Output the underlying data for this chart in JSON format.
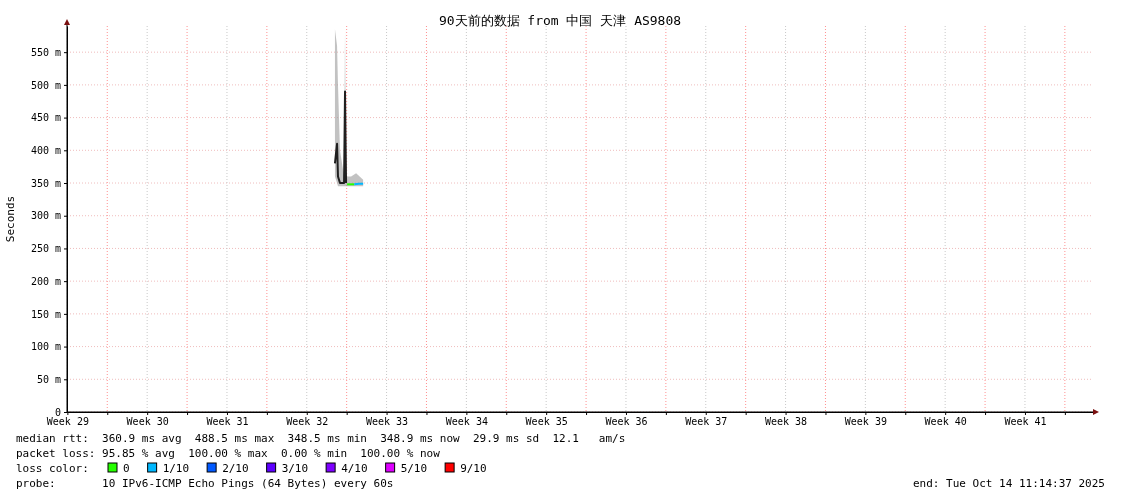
{
  "chart_data": {
    "type": "line",
    "title": "90天前的数据 from 中国 天津 AS9808",
    "ylabel": "Seconds",
    "xlim": [
      "2025-07-16T11:14",
      "2025-10-14T11:14"
    ],
    "xticks": [
      {
        "value": "2025-07-16T12:00",
        "label": "Week 29"
      },
      {
        "value": "2025-07-20T00:00",
        "label": null
      },
      {
        "value": "2025-07-23T12:00",
        "label": "Week 30"
      },
      {
        "value": "2025-07-27T00:00",
        "label": null
      },
      {
        "value": "2025-07-30T12:00",
        "label": "Week 31"
      },
      {
        "value": "2025-08-03T00:00",
        "label": null
      },
      {
        "value": "2025-08-06T12:00",
        "label": "Week 32"
      },
      {
        "value": "2025-08-10T00:00",
        "label": null
      },
      {
        "value": "2025-08-13T12:00",
        "label": "Week 33"
      },
      {
        "value": "2025-08-17T00:00",
        "label": null
      },
      {
        "value": "2025-08-20T12:00",
        "label": "Week 34"
      },
      {
        "value": "2025-08-24T00:00",
        "label": null
      },
      {
        "value": "2025-08-27T12:00",
        "label": "Week 35"
      },
      {
        "value": "2025-08-31T00:00",
        "label": null
      },
      {
        "value": "2025-09-03T12:00",
        "label": "Week 36"
      },
      {
        "value": "2025-09-07T00:00",
        "label": null
      },
      {
        "value": "2025-09-10T12:00",
        "label": "Week 37"
      },
      {
        "value": "2025-09-14T00:00",
        "label": null
      },
      {
        "value": "2025-09-17T12:00",
        "label": "Week 38"
      },
      {
        "value": "2025-09-21T00:00",
        "label": null
      },
      {
        "value": "2025-09-24T12:00",
        "label": "Week 39"
      },
      {
        "value": "2025-09-28T00:00",
        "label": null
      },
      {
        "value": "2025-10-01T12:00",
        "label": "Week 40"
      },
      {
        "value": "2025-10-05T00:00",
        "label": null
      },
      {
        "value": "2025-10-08T12:00",
        "label": "Week 41"
      },
      {
        "value": "2025-10-12T00:00",
        "label": null
      }
    ],
    "ylim": [
      0,
      590
    ],
    "yticks": [
      0,
      {
        "value": 50,
        "label": "50 m"
      },
      {
        "value": 100,
        "label": "100 m"
      },
      {
        "value": 150,
        "label": "150 m"
      },
      {
        "value": 200,
        "label": "200 m"
      },
      {
        "value": 250,
        "label": "250 m"
      },
      {
        "value": 300,
        "label": "300 m"
      },
      {
        "value": 350,
        "label": "350 m"
      },
      {
        "value": 400,
        "label": "400 m"
      },
      {
        "value": 450,
        "label": "450 m"
      },
      {
        "value": 500,
        "label": "500 m"
      },
      {
        "value": 550,
        "label": "550 m"
      }
    ],
    "grid": true,
    "legend": "bottom",
    "legend_title": "loss color:",
    "series": [
      {
        "color": "#202020",
        "x": [
          "2025-08-08T23:20",
          "2025-08-09T03:45",
          "2025-08-09T05:45",
          "2025-08-09T09:57",
          "2025-08-09T18:32",
          "2025-08-09T20:33",
          "2025-08-09T22:44",
          "2025-08-10T09:20",
          "2025-08-10T19:54",
          "2025-08-11T10:40"
        ],
        "values": [
          380,
          410,
          360,
          350,
          350,
          490,
          350,
          null,
          null,
          null
        ],
        "lower": [
          360,
          350,
          345,
          345,
          345,
          345,
          345,
          345,
          345,
          345
        ],
        "upper": [
          585,
          560,
          500,
          400,
          360,
          585,
          360,
          360,
          365,
          355
        ]
      },
      {
        "name": "0",
        "color": "#26ff00",
        "x": [
          "2025-08-10T00:54",
          "2025-08-10T07:38",
          "2025-08-10T16:02"
        ],
        "values": [
          348,
          348,
          348
        ]
      },
      {
        "name": "1/10",
        "color": "#00b8ff",
        "x": [
          "2025-08-10T16:02",
          "2025-08-11T02:08",
          "2025-08-11T10:40"
        ],
        "values": [
          348,
          349,
          349
        ]
      },
      {
        "name": "2/10",
        "color": "#0059ff"
      },
      {
        "name": "3/10",
        "color": "#5e00ff"
      },
      {
        "name": "4/10",
        "color": "#7e00ff"
      },
      {
        "name": "5/10",
        "color": "#dd00ff"
      },
      {
        "name": "9/10",
        "color": "#ff0000"
      }
    ],
    "annotations": [
      "median rtt:  360.9 ms avg  488.5 ms max  348.5 ms min  348.9 ms now  29.9 ms sd  12.1   am/s",
      "packet loss: 95.85 % avg  100.00 % max  0.00 % min  100.00 % now",
      "probe:       10 IPv6-ICMP Echo Pings (64 Bytes) every 60s",
      "end: Tue Oct 14 11:14:37 2025"
    ]
  }
}
